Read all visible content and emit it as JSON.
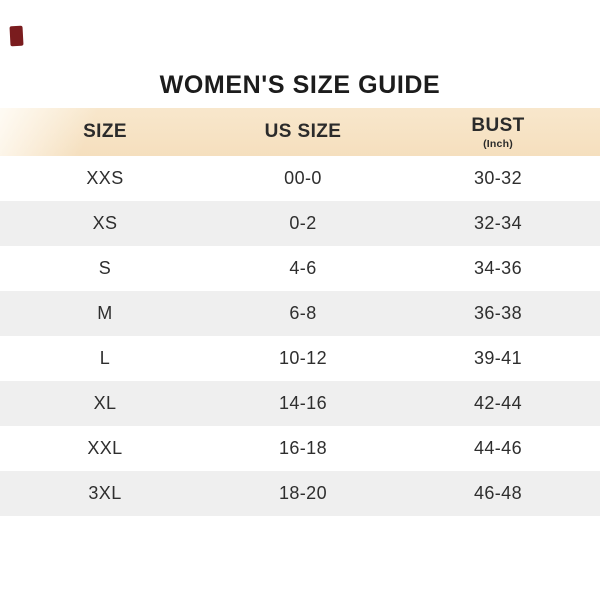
{
  "title": "WOMEN'S SIZE GUIDE",
  "size_guide": {
    "columns": [
      {
        "label": "SIZE",
        "unit": ""
      },
      {
        "label": "US SIZE",
        "unit": ""
      },
      {
        "label": "BUST",
        "unit": "(Inch)"
      }
    ],
    "rows": [
      {
        "size": "XXS",
        "us_size": "00-0",
        "bust": "30-32"
      },
      {
        "size": "XS",
        "us_size": "0-2",
        "bust": "32-34"
      },
      {
        "size": "S",
        "us_size": "4-6",
        "bust": "34-36"
      },
      {
        "size": "M",
        "us_size": "6-8",
        "bust": "36-38"
      },
      {
        "size": "L",
        "us_size": "10-12",
        "bust": "39-41"
      },
      {
        "size": "XL",
        "us_size": "14-16",
        "bust": "42-44"
      },
      {
        "size": "XXL",
        "us_size": "16-18",
        "bust": "44-46"
      },
      {
        "size": "3XL",
        "us_size": "18-20",
        "bust": "46-48"
      }
    ]
  },
  "colors": {
    "header_band": "#f6e2c3",
    "header_band_highlight": "#fdf4e9",
    "alt_row": "#efefef",
    "title_text": "#1c1c1c",
    "body_text": "#2e2e2e",
    "corner_mark": "#7a1c1e"
  }
}
